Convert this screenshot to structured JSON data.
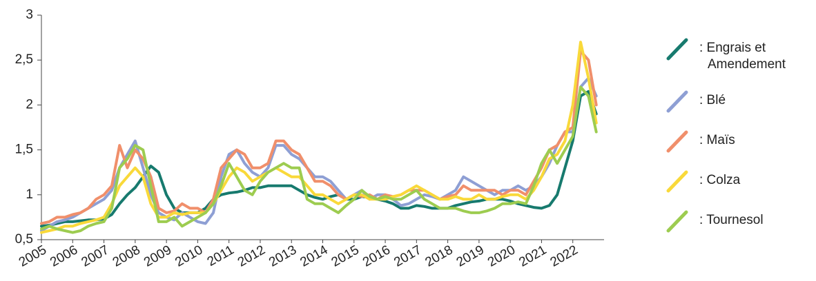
{
  "chart_data": {
    "type": "line",
    "x": [
      2005,
      2005.25,
      2005.5,
      2005.75,
      2006,
      2006.25,
      2006.5,
      2006.75,
      2007,
      2007.25,
      2007.5,
      2007.75,
      2008,
      2008.25,
      2008.5,
      2008.75,
      2009,
      2009.25,
      2009.5,
      2009.75,
      2010,
      2010.25,
      2010.5,
      2010.75,
      2011,
      2011.25,
      2011.5,
      2011.75,
      2012,
      2012.25,
      2012.5,
      2012.75,
      2013,
      2013.25,
      2013.5,
      2013.75,
      2014,
      2014.25,
      2014.5,
      2014.75,
      2015,
      2015.25,
      2015.5,
      2015.75,
      2016,
      2016.25,
      2016.5,
      2016.75,
      2017,
      2017.25,
      2017.5,
      2017.75,
      2018,
      2018.25,
      2018.5,
      2018.75,
      2019,
      2019.25,
      2019.5,
      2019.75,
      2020,
      2020.25,
      2020.5,
      2020.75,
      2021,
      2021.25,
      2021.5,
      2021.75,
      2022,
      2022.25,
      2022.5,
      2022.75
    ],
    "series": [
      {
        "name": ": Engrais et Amendement",
        "color": "#177a6e",
        "values": [
          0.65,
          0.66,
          0.68,
          0.7,
          0.7,
          0.71,
          0.72,
          0.72,
          0.73,
          0.78,
          0.9,
          1.0,
          1.08,
          1.2,
          1.32,
          1.25,
          1.0,
          0.85,
          0.8,
          0.8,
          0.8,
          0.85,
          0.95,
          1.0,
          1.02,
          1.03,
          1.05,
          1.08,
          1.08,
          1.1,
          1.1,
          1.1,
          1.1,
          1.05,
          1.0,
          0.97,
          0.95,
          0.98,
          1.0,
          0.95,
          0.95,
          0.98,
          0.97,
          0.95,
          0.93,
          0.9,
          0.85,
          0.85,
          0.88,
          0.87,
          0.85,
          0.85,
          0.85,
          0.88,
          0.9,
          0.92,
          0.93,
          0.95,
          0.95,
          0.95,
          0.93,
          0.9,
          0.88,
          0.86,
          0.85,
          0.88,
          1.0,
          1.3,
          1.6,
          2.1,
          2.15,
          1.9
        ]
      },
      {
        "name": ": Blé",
        "color": "#8e9fd4",
        "values": [
          0.6,
          0.65,
          0.7,
          0.72,
          0.75,
          0.8,
          0.85,
          0.9,
          0.95,
          1.05,
          1.3,
          1.45,
          1.6,
          1.3,
          1.0,
          0.8,
          0.75,
          0.72,
          0.8,
          0.75,
          0.7,
          0.68,
          0.8,
          1.2,
          1.45,
          1.5,
          1.35,
          1.25,
          1.2,
          1.3,
          1.55,
          1.55,
          1.45,
          1.4,
          1.3,
          1.2,
          1.2,
          1.15,
          1.05,
          0.95,
          1.0,
          1.05,
          0.95,
          1.0,
          1.0,
          0.95,
          0.88,
          0.9,
          0.95,
          1.0,
          0.98,
          0.95,
          1.0,
          1.05,
          1.2,
          1.15,
          1.1,
          1.05,
          1.0,
          1.05,
          1.05,
          1.1,
          1.05,
          1.1,
          1.2,
          1.35,
          1.55,
          1.7,
          1.7,
          2.2,
          2.3,
          2.1
        ]
      },
      {
        "name": ": Maïs",
        "color": "#f08f6b",
        "values": [
          0.68,
          0.7,
          0.75,
          0.75,
          0.78,
          0.8,
          0.85,
          0.95,
          1.0,
          1.1,
          1.55,
          1.3,
          1.5,
          1.4,
          1.2,
          0.85,
          0.8,
          0.82,
          0.9,
          0.85,
          0.85,
          0.8,
          0.95,
          1.3,
          1.4,
          1.5,
          1.45,
          1.3,
          1.3,
          1.35,
          1.6,
          1.6,
          1.5,
          1.45,
          1.3,
          1.15,
          1.15,
          1.1,
          1.0,
          0.95,
          1.0,
          0.98,
          1.0,
          0.95,
          1.0,
          0.98,
          1.0,
          1.05,
          1.05,
          1.05,
          1.0,
          0.95,
          0.98,
          1.0,
          1.1,
          1.05,
          1.05,
          1.05,
          1.05,
          1.0,
          1.05,
          1.05,
          1.0,
          1.15,
          1.3,
          1.5,
          1.55,
          1.7,
          1.75,
          2.6,
          2.5,
          2.0
        ]
      },
      {
        "name": ": Colza",
        "color": "#f9d93a",
        "values": [
          0.58,
          0.6,
          0.62,
          0.65,
          0.65,
          0.68,
          0.7,
          0.72,
          0.75,
          0.9,
          1.1,
          1.2,
          1.3,
          1.2,
          0.9,
          0.75,
          0.75,
          0.8,
          0.78,
          0.8,
          0.8,
          0.8,
          0.9,
          1.05,
          1.2,
          1.3,
          1.25,
          1.15,
          1.2,
          1.25,
          1.3,
          1.25,
          1.2,
          1.2,
          1.1,
          1.0,
          1.0,
          0.95,
          0.9,
          0.95,
          1.0,
          1.0,
          0.95,
          0.95,
          0.95,
          0.98,
          1.0,
          1.05,
          1.1,
          1.05,
          1.0,
          0.95,
          0.95,
          0.98,
          0.95,
          0.95,
          1.0,
          0.95,
          0.95,
          0.98,
          1.0,
          1.0,
          0.95,
          1.05,
          1.2,
          1.4,
          1.45,
          1.6,
          2.0,
          2.7,
          2.3,
          1.8
        ]
      },
      {
        "name": ": Tournesol",
        "color": "#9dcc50",
        "values": [
          0.62,
          0.65,
          0.62,
          0.6,
          0.58,
          0.6,
          0.65,
          0.68,
          0.7,
          0.85,
          1.3,
          1.4,
          1.55,
          1.5,
          1.1,
          0.7,
          0.7,
          0.75,
          0.65,
          0.7,
          0.75,
          0.8,
          0.9,
          1.1,
          1.35,
          1.2,
          1.05,
          1.0,
          1.15,
          1.25,
          1.3,
          1.35,
          1.3,
          1.3,
          0.95,
          0.9,
          0.9,
          0.85,
          0.8,
          0.88,
          0.95,
          1.05,
          0.98,
          0.95,
          0.98,
          0.95,
          0.95,
          1.0,
          1.05,
          0.95,
          0.9,
          0.85,
          0.85,
          0.85,
          0.82,
          0.8,
          0.8,
          0.82,
          0.85,
          0.9,
          0.9,
          0.92,
          0.9,
          1.1,
          1.35,
          1.5,
          1.35,
          1.5,
          1.65,
          2.2,
          2.1,
          1.7
        ]
      }
    ],
    "xlim": [
      2005,
      2023
    ],
    "xticks": [
      2005,
      2006,
      2007,
      2008,
      2009,
      2010,
      2011,
      2012,
      2013,
      2014,
      2015,
      2016,
      2017,
      2018,
      2019,
      2020,
      2021,
      2022
    ],
    "ylim": [
      0.5,
      3
    ],
    "yticks": [
      {
        "value": 0.5,
        "label": "0,5"
      },
      1,
      {
        "value": 1.5,
        "label": "1,5"
      },
      2,
      {
        "value": 2.5,
        "label": "2,5"
      },
      3
    ],
    "grid": false,
    "legend": "right"
  }
}
